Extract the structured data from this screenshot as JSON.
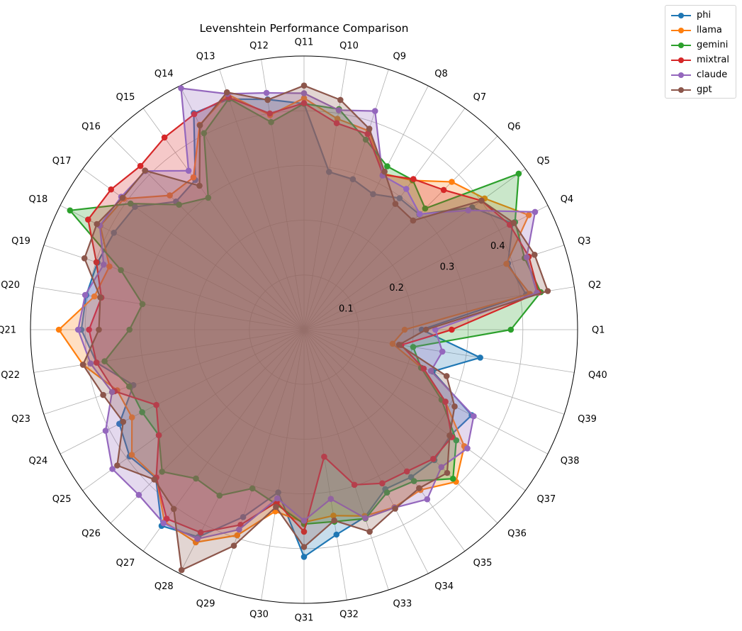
{
  "chart_data": {
    "type": "radar",
    "title": "Levenshtein Performance Comparison",
    "categories": [
      "Q1",
      "Q2",
      "Q3",
      "Q4",
      "Q5",
      "Q6",
      "Q7",
      "Q8",
      "Q9",
      "Q10",
      "Q11",
      "Q12",
      "Q13",
      "Q14",
      "Q15",
      "Q16",
      "Q17",
      "Q18",
      "Q19",
      "Q20",
      "Q21",
      "Q22",
      "Q23",
      "Q24",
      "Q25",
      "Q26",
      "Q27",
      "Q28",
      "Q29",
      "Q30",
      "Q31",
      "Q32",
      "Q33",
      "Q34",
      "Q35",
      "Q36",
      "Q37",
      "Q38",
      "Q39",
      "Q40"
    ],
    "radial_ticks": [
      0.1,
      0.2,
      0.3,
      0.4
    ],
    "radial_tick_labels": [
      "0.1",
      "0.2",
      "0.3",
      "0.4"
    ],
    "rlim": [
      0,
      0.5
    ],
    "grid": true,
    "legend_position": "top-right",
    "series": [
      {
        "name": "phi",
        "color": "#1f77b4",
        "values": [
          0.215,
          0.411,
          0.392,
          0.428,
          0.38,
          0.298,
          0.297,
          0.278,
          0.289,
          0.292,
          0.413,
          0.426,
          0.443,
          0.444,
          0.338,
          0.331,
          0.382,
          0.39,
          0.397,
          0.403,
          0.407,
          0.384,
          0.328,
          0.379,
          0.394,
          0.383,
          0.443,
          0.425,
          0.36,
          0.301,
          0.415,
          0.379,
          0.36,
          0.327,
          0.333,
          0.337,
          0.33,
          0.344,
          0.247,
          0.326
        ]
      },
      {
        "name": "llama",
        "color": "#ff7f0e",
        "values": [
          0.184,
          0.418,
          0.389,
          0.461,
          0.408,
          0.382,
          0.337,
          0.32,
          0.382,
          0.39,
          0.423,
          0.397,
          0.452,
          0.42,
          0.344,
          0.347,
          0.407,
          0.418,
          0.374,
          0.388,
          0.448,
          0.409,
          0.359,
          0.353,
          0.389,
          0.382,
          0.434,
          0.436,
          0.395,
          0.336,
          0.352,
          0.344,
          0.358,
          0.364,
          0.362,
          0.393,
          0.362,
          0.29,
          0.226,
          0.164
        ]
      },
      {
        "name": "gemini",
        "color": "#2ca02c",
        "values": [
          0.378,
          0.438,
          0.424,
          0.433,
          0.485,
          0.313,
          0.338,
          0.335,
          0.365,
          0.408,
          0.413,
          0.384,
          0.444,
          0.403,
          0.298,
          0.323,
          0.392,
          0.48,
          0.352,
          0.299,
          0.319,
          0.369,
          0.336,
          0.332,
          0.328,
          0.367,
          0.336,
          0.34,
          0.305,
          0.323,
          0.355,
          0.355,
          0.363,
          0.334,
          0.342,
          0.385,
          0.344,
          0.282,
          0.225,
          0.202
        ]
      },
      {
        "name": "mixtral",
        "color": "#d62728",
        "values": [
          0.27,
          0.434,
          0.432,
          0.422,
          0.401,
          0.361,
          0.34,
          0.318,
          0.376,
          0.382,
          0.414,
          0.4,
          0.446,
          0.442,
          0.434,
          0.423,
          0.436,
          0.443,
          0.399,
          0.375,
          0.393,
          0.384,
          0.364,
          0.303,
          0.328,
          0.382,
          0.427,
          0.416,
          0.375,
          0.319,
          0.369,
          0.235,
          0.298,
          0.315,
          0.32,
          0.334,
          0.334,
          0.29,
          0.23,
          0.18
        ]
      },
      {
        "name": "claude",
        "color": "#9467bd",
        "values": [
          0.24,
          0.431,
          0.428,
          0.474,
          0.371,
          0.299,
          0.318,
          0.316,
          0.42,
          0.406,
          0.432,
          0.438,
          0.453,
          0.495,
          0.359,
          0.41,
          0.413,
          0.419,
          0.385,
          0.405,
          0.413,
          0.395,
          0.369,
          0.407,
          0.433,
          0.427,
          0.437,
          0.429,
          0.384,
          0.312,
          0.349,
          0.313,
          0.362,
          0.365,
          0.383,
          0.355,
          0.369,
          0.348,
          0.244,
          0.256
        ]
      },
      {
        "name": "gpt",
        "color": "#8c564b",
        "values": [
          0.223,
          0.451,
          0.443,
          0.43,
          0.401,
          0.282,
          0.284,
          0.324,
          0.386,
          0.425,
          0.446,
          0.425,
          0.456,
          0.419,
          0.325,
          0.411,
          0.41,
          0.425,
          0.422,
          0.377,
          0.375,
          0.409,
          0.386,
          0.371,
          0.422,
          0.387,
          0.405,
          0.493,
          0.415,
          0.328,
          0.397,
          0.353,
          0.388,
          0.367,
          0.358,
          0.37,
          0.329,
          0.309,
          0.274,
          0.176
        ]
      }
    ]
  }
}
